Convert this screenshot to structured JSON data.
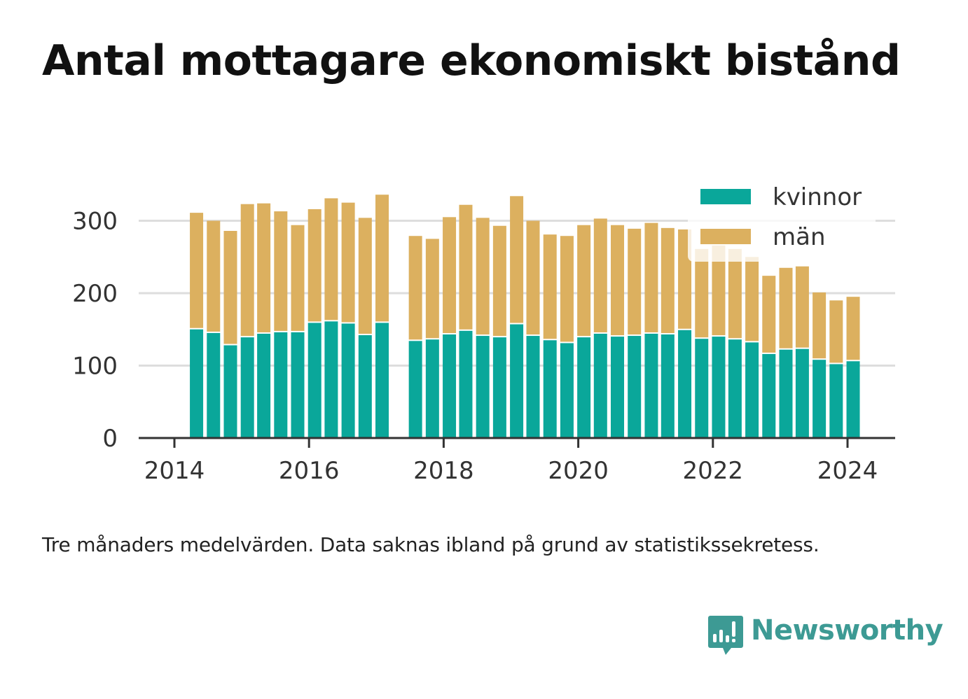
{
  "title": "Antal mottagare ekonomiskt bistånd",
  "note": "Tre månaders medelvärden. Data saknas ibland på grund av statistikssekretess.",
  "brand": {
    "name": "Newsworthy",
    "logo_icon": "bar-chart-speech-bubble-icon"
  },
  "colors": {
    "kvinnor": "#0aa79a",
    "man": "#dcb05f",
    "grid": "#dddddd",
    "axis": "#333333",
    "text": "#333333"
  },
  "chart_data": {
    "type": "bar",
    "stacked": true,
    "title": "",
    "xlabel": "",
    "ylabel": "",
    "ylim": [
      0,
      345
    ],
    "yticks": [
      "0",
      "100",
      "200",
      "300"
    ],
    "xticks": [
      "2014",
      "2016",
      "2018",
      "2020",
      "2022",
      "2024"
    ],
    "grid": true,
    "legend_position": "top-right",
    "x": [
      "2014-05",
      "2014-08",
      "2014-11",
      "2015-02",
      "2015-05",
      "2015-08",
      "2015-11",
      "2016-02",
      "2016-05",
      "2016-08",
      "2016-11",
      "2017-02",
      "2017-08",
      "2017-11",
      "2018-02",
      "2018-05",
      "2018-08",
      "2018-11",
      "2019-02",
      "2019-05",
      "2019-08",
      "2019-11",
      "2020-02",
      "2020-05",
      "2020-08",
      "2020-11",
      "2021-02",
      "2021-05",
      "2021-08",
      "2021-11",
      "2022-02",
      "2022-05",
      "2022-08",
      "2022-11",
      "2023-02",
      "2023-05",
      "2023-08",
      "2023-11",
      "2024-02"
    ],
    "series": [
      {
        "name": "kvinnor",
        "values": [
          150,
          145,
          128,
          139,
          144,
          146,
          146,
          159,
          161,
          158,
          142,
          159,
          134,
          136,
          143,
          148,
          141,
          139,
          157,
          141,
          135,
          131,
          139,
          144,
          140,
          141,
          144,
          143,
          149,
          137,
          140,
          136,
          132,
          116,
          122,
          123,
          108,
          102,
          106
        ]
      },
      {
        "name": "män",
        "values": [
          161,
          155,
          158,
          184,
          180,
          167,
          148,
          157,
          170,
          167,
          162,
          177,
          145,
          139,
          162,
          174,
          163,
          154,
          177,
          159,
          146,
          148,
          155,
          159,
          154,
          148,
          153,
          147,
          139,
          124,
          126,
          125,
          118,
          108,
          113,
          114,
          93,
          88,
          89
        ]
      }
    ]
  }
}
